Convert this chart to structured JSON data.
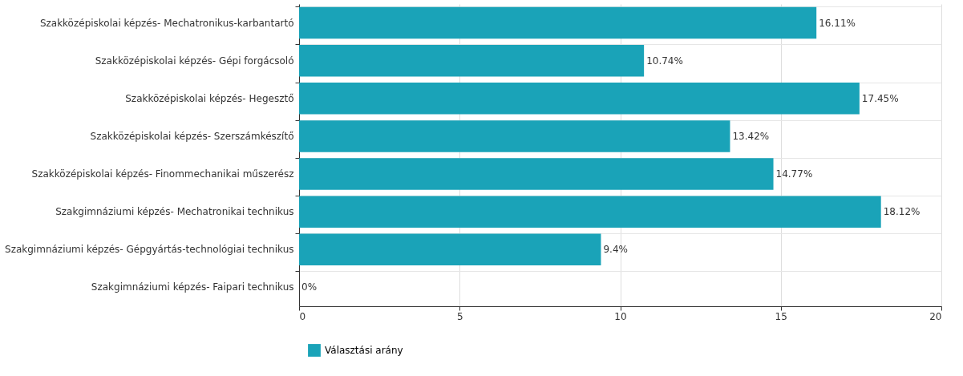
{
  "chart_data": {
    "type": "bar",
    "orientation": "horizontal",
    "categories": [
      "Szakközépiskolai képzés- Mechatronikus-karbantartó",
      "Szakközépiskolai képzés- Gépi forgácsoló",
      "Szakközépiskolai képzés- Hegesztő",
      "Szakközépiskolai képzés- Szerszámkészítő",
      "Szakközépiskolai képzés- Finommechanikai műszerész",
      "Szakgimnáziumi képzés- Mechatronikai technikus",
      "Szakgimnáziumi képzés- Gépgyártás-technológiai technikus",
      "Szakgimnáziumi képzés- Faipari technikus"
    ],
    "series": [
      {
        "name": "Választási arány",
        "color": "#1aa3b8",
        "values": [
          16.11,
          10.74,
          17.45,
          13.42,
          14.77,
          18.12,
          9.4,
          0
        ],
        "value_labels": [
          "16.11%",
          "10.74%",
          "17.45%",
          "13.42%",
          "14.77%",
          "18.12%",
          "9.4%",
          "0%"
        ]
      }
    ],
    "xlim": [
      0,
      20
    ],
    "xticks": [
      0,
      5,
      10,
      15,
      20
    ],
    "grid": true,
    "legend": "bottom"
  }
}
